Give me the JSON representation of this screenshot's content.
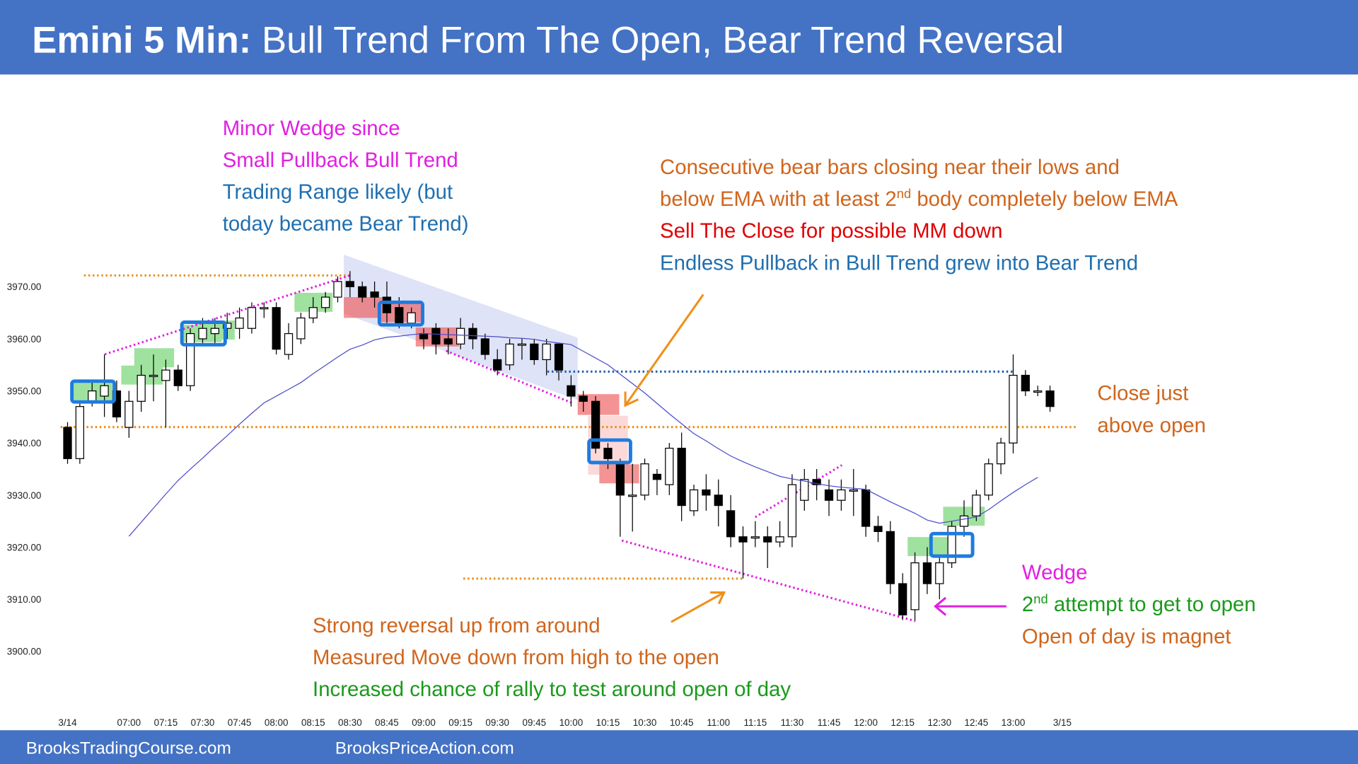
{
  "header": {
    "title_bold": "Emini 5 Min:",
    "title": "Bull Trend From The Open, Bear Trend Reversal"
  },
  "footer": {
    "left": "BrooksTradingCourse.com",
    "right": "BrooksPriceAction.com"
  },
  "chart_data": {
    "type": "candlestick",
    "categories": [
      "3/14",
      null,
      null,
      null,
      null,
      "07:00",
      null,
      null,
      "07:15",
      null,
      null,
      "07:30",
      null,
      null,
      "07:45",
      null,
      null,
      "08:00",
      null,
      null,
      "08:15",
      null,
      null,
      "08:30",
      null,
      null,
      "08:45",
      null,
      null,
      "09:00",
      null,
      null,
      "09:15",
      null,
      null,
      "09:30",
      null,
      null,
      "09:45",
      null,
      null,
      "10:00",
      null,
      null,
      "10:15",
      null,
      null,
      "10:30",
      null,
      null,
      "10:45",
      null,
      null,
      "11:00",
      null,
      null,
      "11:15",
      null,
      null,
      "11:30",
      null,
      null,
      "11:45",
      null,
      null,
      "12:00",
      null,
      null,
      "12:15",
      null,
      null,
      "12:30",
      null,
      null,
      "12:45",
      null,
      null,
      "13:00",
      null,
      null,
      null,
      "3/15"
    ],
    "open": [
      3943,
      3937,
      3948,
      3949,
      3950,
      3943,
      3948,
      3953,
      3952,
      3954,
      3951,
      3960,
      3961,
      3962,
      3962,
      3962,
      3966,
      3966,
      3957,
      3960,
      3964,
      3966,
      3968,
      3971,
      3970,
      3969,
      3968,
      3966,
      3963,
      3961,
      3962,
      3960,
      3959,
      3962,
      3960,
      3956,
      3955,
      3959,
      3959,
      3956,
      3959,
      3951,
      3949,
      3948,
      3939,
      3936,
      3930,
      3930,
      3934,
      3932,
      3939,
      3927,
      3931,
      3930,
      3927,
      3922,
      3922,
      3922,
      3921,
      3922,
      3929,
      3933,
      3931,
      3929,
      3931,
      3931,
      3924,
      3923,
      3913,
      3908,
      3917,
      3913,
      3917,
      3924,
      3926,
      3930,
      3936,
      3940,
      3953,
      3950,
      3950,
      null
    ],
    "high": [
      3944,
      3948,
      3952,
      3957,
      3952,
      3950,
      3955,
      3957,
      3956,
      3955,
      3962,
      3964,
      3964,
      3965,
      3966,
      3967,
      3967,
      3967,
      3963,
      3965,
      3968,
      3969,
      3972,
      3973,
      3971,
      3971,
      3971,
      3968,
      3966,
      3962,
      3963,
      3962,
      3964,
      3963,
      3961,
      3958,
      3960,
      3960,
      3960,
      3960,
      3959,
      3953,
      3950,
      3949,
      3940,
      3937,
      3936,
      3937,
      3935,
      3940,
      3942,
      3932,
      3934,
      3933,
      3930,
      3924,
      3925,
      3924,
      3925,
      3934,
      3935,
      3935,
      3933,
      3933,
      3935,
      3932,
      3926,
      3925,
      3915,
      3919,
      3920,
      3918,
      3925,
      3929,
      3931,
      3937,
      3941,
      3957,
      3954,
      3951,
      3951,
      null
    ],
    "low": [
      3936,
      3936,
      3947,
      3945,
      3944,
      3941,
      3946,
      3948,
      3943,
      3950,
      3950,
      3959,
      3959,
      3960,
      3960,
      3961,
      3964,
      3957,
      3956,
      3959,
      3963,
      3965,
      3967,
      3968,
      3967,
      3966,
      3963,
      3962,
      3962,
      3958,
      3957,
      3957,
      3958,
      3958,
      3956,
      3953,
      3954,
      3956,
      3955,
      3953,
      3952,
      3947,
      3946,
      3938,
      3935,
      3922,
      3923,
      3929,
      3930,
      3930,
      3925,
      3926,
      3927,
      3924,
      3920,
      3914,
      3920,
      3916,
      3920,
      3920,
      3927,
      3929,
      3926,
      3927,
      3926,
      3922,
      3921,
      3911,
      3906,
      3906,
      3911,
      3910,
      3916,
      3922,
      3925,
      3929,
      3934,
      3938,
      3949,
      3949,
      3946,
      null
    ],
    "close": [
      3937,
      3947,
      3950,
      3951,
      3945,
      3948,
      3953,
      3953,
      3954,
      3951,
      3961,
      3962,
      3962,
      3963,
      3964,
      3966,
      3966,
      3958,
      3961,
      3964,
      3966,
      3968,
      3971,
      3970,
      3968,
      3968,
      3965,
      3963,
      3965,
      3960,
      3959,
      3959,
      3962,
      3960,
      3957,
      3954,
      3959,
      3959,
      3956,
      3959,
      3954,
      3949,
      3948,
      3939,
      3937,
      3930,
      3930,
      3936,
      3933,
      3939,
      3928,
      3931,
      3930,
      3928,
      3922,
      3921,
      3922,
      3921,
      3922,
      3932,
      3933,
      3932,
      3929,
      3931,
      3931,
      3924,
      3923,
      3913,
      3907,
      3917,
      3913,
      3917,
      3924,
      3926,
      3930,
      3936,
      3940,
      3953,
      3950,
      3950,
      3947,
      null
    ],
    "ema": [
      null,
      null,
      null,
      null,
      null,
      3922.1,
      3924.8,
      3927.5,
      3930.2,
      3932.8,
      3935.0,
      3937.1,
      3939.3,
      3941.4,
      3943.6,
      3945.7,
      3947.7,
      3949.0,
      3950.3,
      3951.6,
      3953.3,
      3954.9,
      3956.5,
      3958.0,
      3958.8,
      3959.8,
      3960.3,
      3960.5,
      3960.8,
      3961.0,
      3960.9,
      3960.8,
      3960.7,
      3960.6,
      3960.5,
      3960.4,
      3960.2,
      3960.1,
      3959.9,
      3959.5,
      3959.2,
      3958.9,
      3957.6,
      3956.3,
      3955.0,
      3953.2,
      3951.4,
      3949.6,
      3947.6,
      3945.6,
      3943.7,
      3941.8,
      3940.4,
      3938.9,
      3937.5,
      3936.4,
      3935.4,
      3934.5,
      3933.6,
      3933.1,
      3932.7,
      3932.2,
      3931.8,
      3931.5,
      3931.3,
      3931.1,
      3929.9,
      3928.7,
      3927.6,
      3926.5,
      3925.2,
      3924.6,
      3925.0,
      3925.4,
      3925.8,
      3927.2,
      3928.9,
      3930.5,
      3932.0,
      3933.4,
      null,
      null
    ],
    "up_color": "#ffffff",
    "down_color": "#000000",
    "wick_color": "#000000",
    "ema_color": "#4b4bc8",
    "ylim": [
      3890,
      3980
    ],
    "yticks": [
      {
        "value": 3900,
        "label": "3900.00"
      },
      {
        "value": 3910,
        "label": "3910.00"
      },
      {
        "value": 3920,
        "label": "3920.00"
      },
      {
        "value": 3930,
        "label": "3930.00"
      },
      {
        "value": 3940,
        "label": "3940.00"
      },
      {
        "value": 3950,
        "label": "3950.00"
      },
      {
        "value": 3960,
        "label": "3960.00"
      },
      {
        "value": 3970,
        "label": "3970.00"
      }
    ],
    "annotations": [
      [
        [
          "Minor Wedge since"
        ],
        [
          "Small Pullback Bull Trend"
        ],
        [
          "Trading Range likely (but"
        ],
        [
          "today became Bear Trend)"
        ]
      ],
      [
        [
          "Consecutive bear bars closing near their lows and"
        ],
        [
          "below EMA with at least 2",
          "nd",
          " body completely below EMA"
        ],
        [
          "Sell The Close for possible MM down"
        ],
        [
          "Endless Pullback in Bull Trend grew into Bear Trend"
        ]
      ],
      [
        [
          "Close just"
        ],
        [
          "above open"
        ]
      ],
      [
        [
          "Wedge"
        ],
        [
          "2",
          "nd",
          " attempt to get to open"
        ],
        [
          "Open of day is magnet"
        ]
      ],
      [
        [
          "Strong reversal up from around"
        ],
        [
          "Measured Move down from high to the open"
        ],
        [
          "Increased chance of rally to test around open of day"
        ]
      ]
    ]
  }
}
